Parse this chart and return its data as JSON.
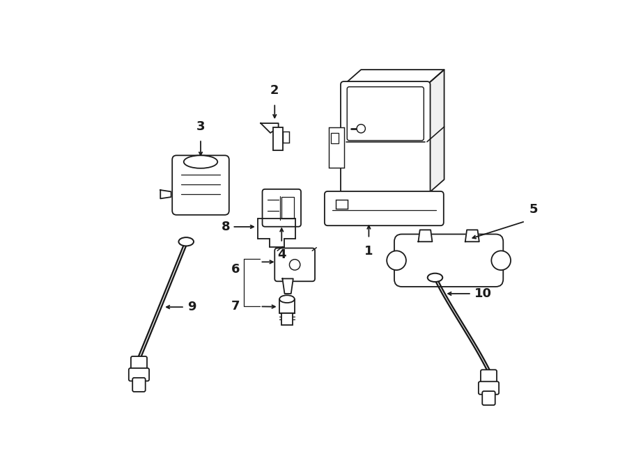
{
  "bg_color": "#ffffff",
  "line_color": "#1a1a1a",
  "lw": 1.3,
  "fig_width": 9.0,
  "fig_height": 6.61,
  "dpi": 100
}
